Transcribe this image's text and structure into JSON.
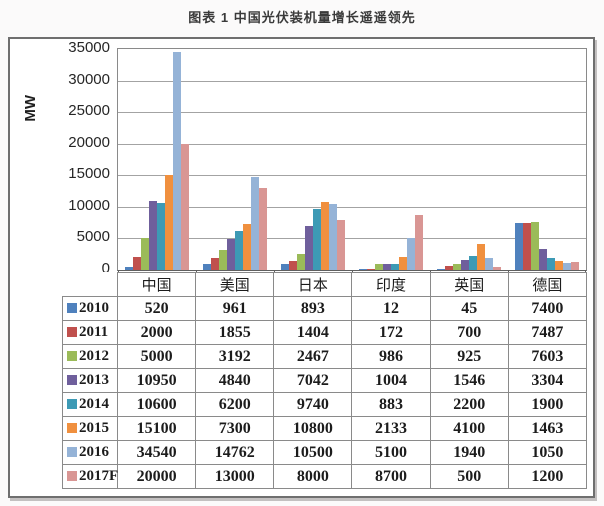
{
  "page_title": "图表 1 中国光伏装机量增长遥遥领先",
  "chart_data": {
    "type": "bar",
    "title": "图表 1 中国光伏装机量增长遥遥领先",
    "xlabel": "",
    "ylabel": "MW",
    "ylim": [
      0,
      35000
    ],
    "ytick_step": 5000,
    "yticks": [
      0,
      5000,
      10000,
      15000,
      20000,
      25000,
      30000,
      35000
    ],
    "grid": true,
    "legend_position": "table-left",
    "categories": [
      "中国",
      "美国",
      "日本",
      "印度",
      "英国",
      "德国"
    ],
    "series": [
      {
        "name": "2010",
        "color": "#4F81BD",
        "values": [
          520,
          961,
          893,
          12,
          45,
          7400
        ]
      },
      {
        "name": "2011",
        "color": "#C0504D",
        "values": [
          2000,
          1855,
          1404,
          172,
          700,
          7487
        ]
      },
      {
        "name": "2012",
        "color": "#9BBB59",
        "values": [
          5000,
          3192,
          2467,
          986,
          925,
          7603
        ]
      },
      {
        "name": "2013",
        "color": "#6F5F9C",
        "values": [
          10950,
          4840,
          7042,
          1004,
          1546,
          3304
        ]
      },
      {
        "name": "2014",
        "color": "#3D9AB5",
        "values": [
          10600,
          6200,
          9740,
          883,
          2200,
          1900
        ]
      },
      {
        "name": "2015",
        "color": "#F0903F",
        "values": [
          15100,
          7300,
          10800,
          2133,
          4100,
          1463
        ]
      },
      {
        "name": "2016",
        "color": "#95B3D7",
        "values": [
          34540,
          14762,
          10500,
          5100,
          1940,
          1050
        ]
      },
      {
        "name": "2017F",
        "color": "#D99694",
        "values": [
          20000,
          13000,
          8000,
          8700,
          500,
          1200
        ]
      }
    ]
  }
}
